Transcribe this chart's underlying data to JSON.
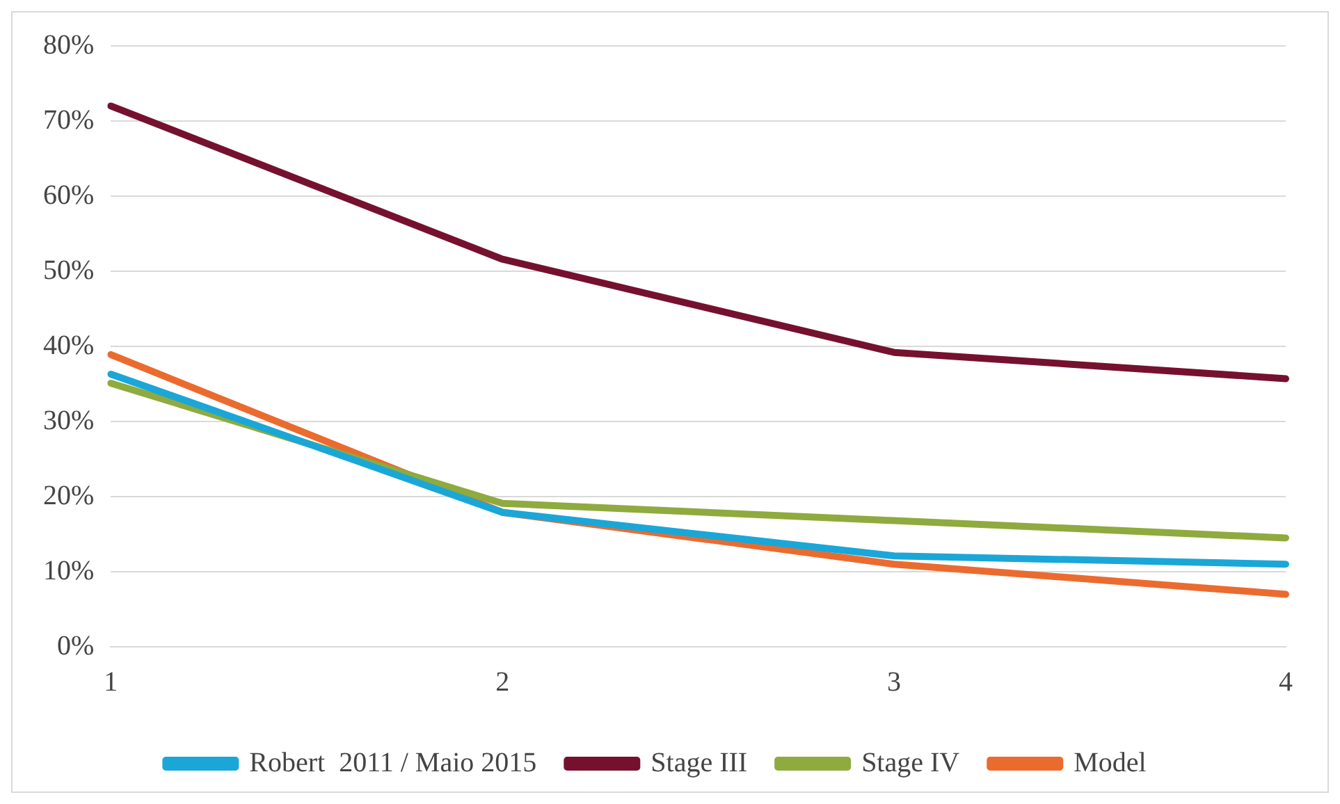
{
  "chart_data": {
    "type": "line",
    "categories": [
      "1",
      "2",
      "3",
      "4"
    ],
    "series": [
      {
        "name": "Robert  2011 / Maio 2015",
        "color": "#1aa7d8",
        "values": [
          36.3,
          17.9,
          12.1,
          11.0
        ]
      },
      {
        "name": "Stage III",
        "color": "#75112f",
        "values": [
          72.0,
          51.6,
          39.2,
          35.7
        ]
      },
      {
        "name": "Stage IV",
        "color": "#8faa3e",
        "values": [
          35.1,
          19.1,
          16.8,
          14.5
        ]
      },
      {
        "name": "Model",
        "color": "#eb6b2f",
        "values": [
          38.9,
          17.9,
          11.0,
          7.0
        ]
      }
    ],
    "ylim": [
      0,
      80
    ],
    "yticks": [
      {
        "value": 0,
        "label": "0%"
      },
      {
        "value": 10,
        "label": "10%"
      },
      {
        "value": 20,
        "label": "20%"
      },
      {
        "value": 30,
        "label": "30%"
      },
      {
        "value": 40,
        "label": "40%"
      },
      {
        "value": 50,
        "label": "50%"
      },
      {
        "value": 60,
        "label": "60%"
      },
      {
        "value": 70,
        "label": "70%"
      },
      {
        "value": 80,
        "label": "80%"
      }
    ],
    "grid": "y",
    "legend": "bottom",
    "marker": "none",
    "line_style": "solid"
  }
}
